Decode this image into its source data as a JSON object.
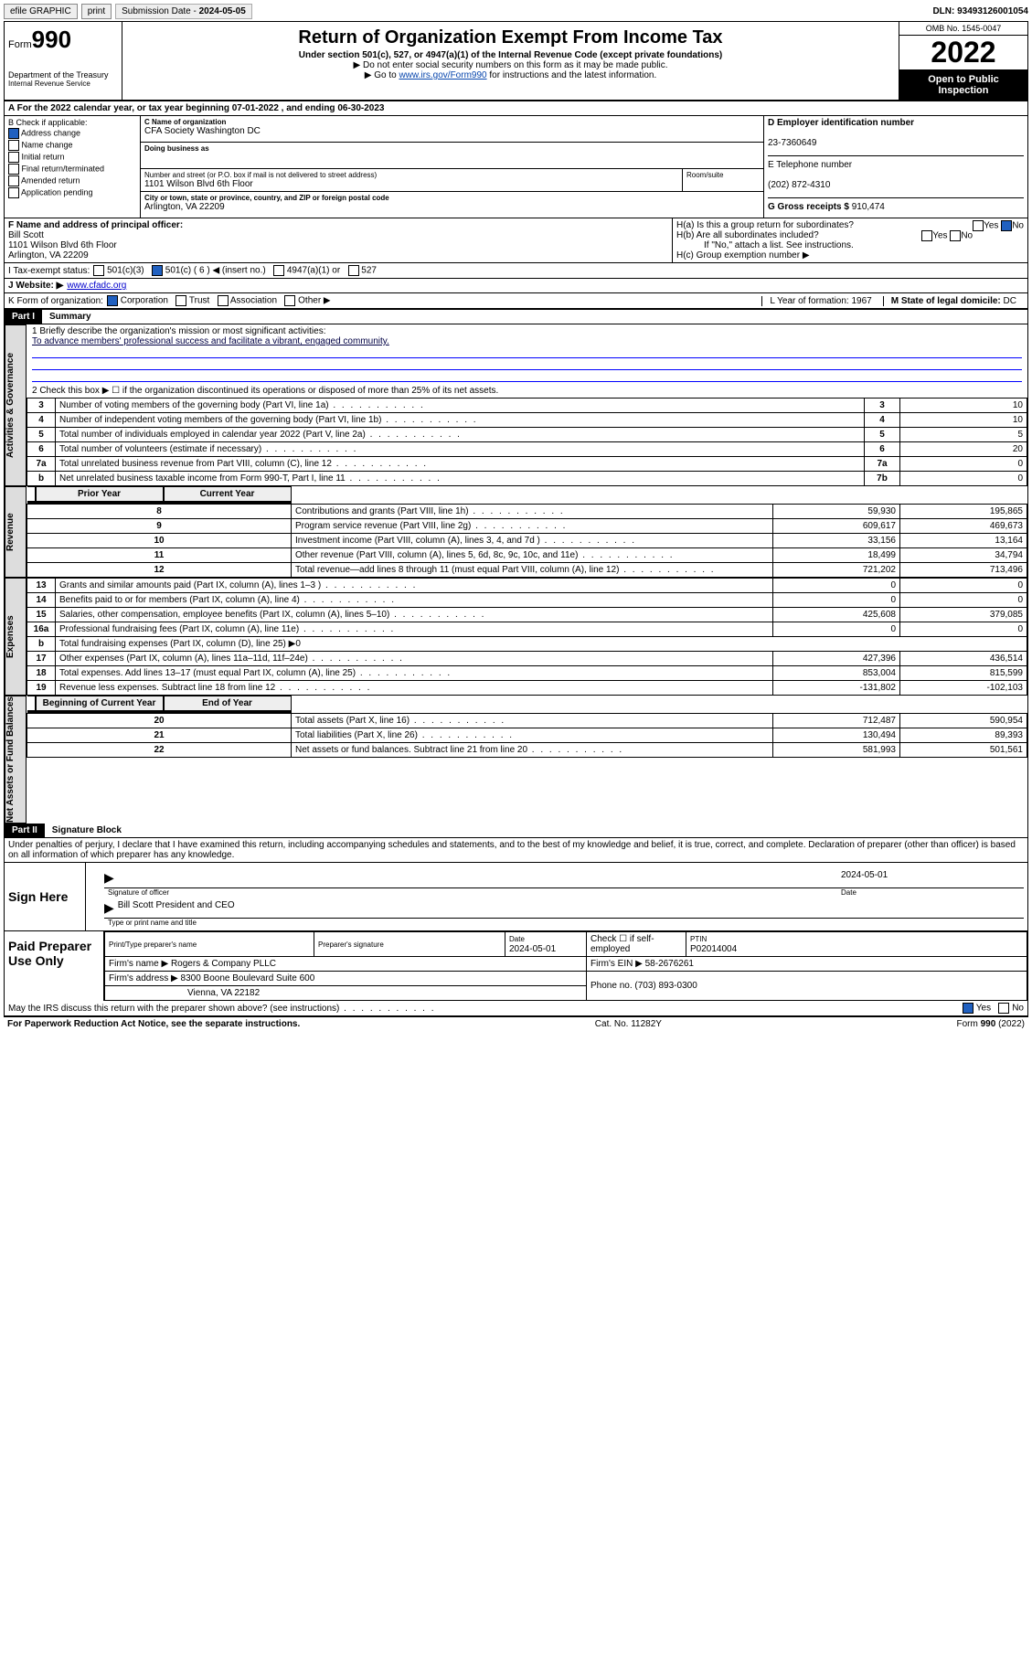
{
  "topbar": {
    "efile": "efile GRAPHIC",
    "print": "print",
    "submission_label": "Submission Date - ",
    "submission_date": "2024-05-05",
    "dln_label": "DLN: ",
    "dln": "93493126001054"
  },
  "header": {
    "form_word": "Form",
    "form_no": "990",
    "dept": "Department of the Treasury",
    "irs": "Internal Revenue Service",
    "title": "Return of Organization Exempt From Income Tax",
    "sub1": "Under section 501(c), 527, or 4947(a)(1) of the Internal Revenue Code (except private foundations)",
    "sub2": "▶ Do not enter social security numbers on this form as it may be made public.",
    "sub3_pre": "▶ Go to ",
    "sub3_link": "www.irs.gov/Form990",
    "sub3_post": " for instructions and the latest information.",
    "omb": "OMB No. 1545-0047",
    "year": "2022",
    "open": "Open to Public Inspection"
  },
  "row_a": "A For the 2022 calendar year, or tax year beginning 07-01-2022  , and ending 06-30-2023",
  "col_b": {
    "title": "B Check if applicable:",
    "items": [
      "Address change",
      "Name change",
      "Initial return",
      "Final return/terminated",
      "Amended return",
      "Application pending"
    ],
    "checked": [
      true,
      false,
      false,
      false,
      false,
      false
    ]
  },
  "col_c": {
    "name_lbl": "C Name of organization",
    "name": "CFA Society Washington DC",
    "dba_lbl": "Doing business as",
    "dba": "",
    "addr_lbl": "Number and street (or P.O. box if mail is not delivered to street address)",
    "room_lbl": "Room/suite",
    "addr": "1101 Wilson Blvd 6th Floor",
    "city_lbl": "City or town, state or province, country, and ZIP or foreign postal code",
    "city": "Arlington, VA  22209"
  },
  "col_d": {
    "ein_lbl": "D Employer identification number",
    "ein": "23-7360649",
    "phone_lbl": "E Telephone number",
    "phone": "(202) 872-4310",
    "gross_lbl": "G Gross receipts $ ",
    "gross": "910,474"
  },
  "col_f": {
    "lbl": "F  Name and address of principal officer:",
    "name": "Bill Scott",
    "addr1": "1101 Wilson Blvd 6th Floor",
    "addr2": "Arlington, VA  22209"
  },
  "col_h": {
    "a": "H(a)  Is this a group return for subordinates?",
    "a_no": "No",
    "b": "H(b)  Are all subordinates included?",
    "b_note": "If \"No,\" attach a list. See instructions.",
    "c": "H(c)  Group exemption number ▶"
  },
  "row_i": {
    "lbl": "I   Tax-exempt status:",
    "opts": [
      "501(c)(3)",
      "501(c) ( 6 ) ◀ (insert no.)",
      "4947(a)(1) or",
      "527"
    ],
    "checked": 1
  },
  "row_j": {
    "lbl": "J   Website: ▶ ",
    "val": "www.cfadc.org"
  },
  "row_k": {
    "lbl": "K Form of organization: ",
    "opts": [
      "Corporation",
      "Trust",
      "Association",
      "Other ▶"
    ],
    "checked": 0
  },
  "row_l": {
    "lbl": "L Year of formation: ",
    "val": "1967"
  },
  "row_m": {
    "lbl": "M State of legal domicile: ",
    "val": "DC"
  },
  "part1": {
    "hdr": "Part I",
    "title": "Summary",
    "q1_lbl": "1  Briefly describe the organization's mission or most significant activities:",
    "q1_val": "To advance members' professional success and facilitate a vibrant, engaged community.",
    "q2": "2  Check this box ▶ ☐  if the organization discontinued its operations or disposed of more than 25% of its net assets.",
    "sections": {
      "gov": "Activities & Governance",
      "rev": "Revenue",
      "exp": "Expenses",
      "net": "Net Assets or Fund Balances"
    },
    "gov_rows": [
      {
        "n": "3",
        "t": "Number of voting members of the governing body (Part VI, line 1a)",
        "box": "3",
        "v": "10"
      },
      {
        "n": "4",
        "t": "Number of independent voting members of the governing body (Part VI, line 1b)",
        "box": "4",
        "v": "10"
      },
      {
        "n": "5",
        "t": "Total number of individuals employed in calendar year 2022 (Part V, line 2a)",
        "box": "5",
        "v": "5"
      },
      {
        "n": "6",
        "t": "Total number of volunteers (estimate if necessary)",
        "box": "6",
        "v": "20"
      },
      {
        "n": "7a",
        "t": "Total unrelated business revenue from Part VIII, column (C), line 12",
        "box": "7a",
        "v": "0"
      },
      {
        "n": "b",
        "t": "Net unrelated business taxable income from Form 990-T, Part I, line 11",
        "box": "7b",
        "v": "0"
      }
    ],
    "col_hdr_prior": "Prior Year",
    "col_hdr_curr": "Current Year",
    "rev_rows": [
      {
        "n": "8",
        "t": "Contributions and grants (Part VIII, line 1h)",
        "p": "59,930",
        "c": "195,865"
      },
      {
        "n": "9",
        "t": "Program service revenue (Part VIII, line 2g)",
        "p": "609,617",
        "c": "469,673"
      },
      {
        "n": "10",
        "t": "Investment income (Part VIII, column (A), lines 3, 4, and 7d )",
        "p": "33,156",
        "c": "13,164"
      },
      {
        "n": "11",
        "t": "Other revenue (Part VIII, column (A), lines 5, 6d, 8c, 9c, 10c, and 11e)",
        "p": "18,499",
        "c": "34,794"
      },
      {
        "n": "12",
        "t": "Total revenue—add lines 8 through 11 (must equal Part VIII, column (A), line 12)",
        "p": "721,202",
        "c": "713,496"
      }
    ],
    "exp_rows": [
      {
        "n": "13",
        "t": "Grants and similar amounts paid (Part IX, column (A), lines 1–3 )",
        "p": "0",
        "c": "0"
      },
      {
        "n": "14",
        "t": "Benefits paid to or for members (Part IX, column (A), line 4)",
        "p": "0",
        "c": "0"
      },
      {
        "n": "15",
        "t": "Salaries, other compensation, employee benefits (Part IX, column (A), lines 5–10)",
        "p": "425,608",
        "c": "379,085"
      },
      {
        "n": "16a",
        "t": "Professional fundraising fees (Part IX, column (A), line 11e)",
        "p": "0",
        "c": "0"
      },
      {
        "n": "b",
        "t": "Total fundraising expenses (Part IX, column (D), line 25) ▶0",
        "p": "",
        "c": ""
      },
      {
        "n": "17",
        "t": "Other expenses (Part IX, column (A), lines 11a–11d, 11f–24e)",
        "p": "427,396",
        "c": "436,514"
      },
      {
        "n": "18",
        "t": "Total expenses. Add lines 13–17 (must equal Part IX, column (A), line 25)",
        "p": "853,004",
        "c": "815,599"
      },
      {
        "n": "19",
        "t": "Revenue less expenses. Subtract line 18 from line 12",
        "p": "-131,802",
        "c": "-102,103"
      }
    ],
    "net_hdr_b": "Beginning of Current Year",
    "net_hdr_e": "End of Year",
    "net_rows": [
      {
        "n": "20",
        "t": "Total assets (Part X, line 16)",
        "p": "712,487",
        "c": "590,954"
      },
      {
        "n": "21",
        "t": "Total liabilities (Part X, line 26)",
        "p": "130,494",
        "c": "89,393"
      },
      {
        "n": "22",
        "t": "Net assets or fund balances. Subtract line 21 from line 20",
        "p": "581,993",
        "c": "501,561"
      }
    ]
  },
  "part2": {
    "hdr": "Part II",
    "title": "Signature Block",
    "decl": "Under penalties of perjury, I declare that I have examined this return, including accompanying schedules and statements, and to the best of my knowledge and belief, it is true, correct, and complete. Declaration of preparer (other than officer) is based on all information of which preparer has any knowledge.",
    "sign_here": "Sign Here",
    "sig_officer": "Signature of officer",
    "sig_date": "2024-05-01",
    "date_lbl": "Date",
    "officer_name": "Bill Scott  President and CEO",
    "type_lbl": "Type or print name and title",
    "paid": "Paid Preparer Use Only",
    "prep_name_lbl": "Print/Type preparer's name",
    "prep_sig_lbl": "Preparer's signature",
    "prep_date_lbl": "Date",
    "prep_date": "2024-05-01",
    "check_lbl": "Check ☐ if self-employed",
    "ptin_lbl": "PTIN",
    "ptin": "P02014004",
    "firm_name_lbl": "Firm's name    ▶ ",
    "firm_name": "Rogers & Company PLLC",
    "firm_ein_lbl": "Firm's EIN ▶ ",
    "firm_ein": "58-2676261",
    "firm_addr_lbl": "Firm's address ▶ ",
    "firm_addr": "8300 Boone Boulevard Suite 600",
    "firm_city": "Vienna, VA  22182",
    "phone_lbl": "Phone no. ",
    "phone": "(703) 893-0300",
    "discuss": "May the IRS discuss this return with the preparer shown above? (see instructions)",
    "yes": "Yes",
    "no": "No"
  },
  "footer": {
    "left": "For Paperwork Reduction Act Notice, see the separate instructions.",
    "mid": "Cat. No. 11282Y",
    "right": "Form 990 (2022)"
  }
}
